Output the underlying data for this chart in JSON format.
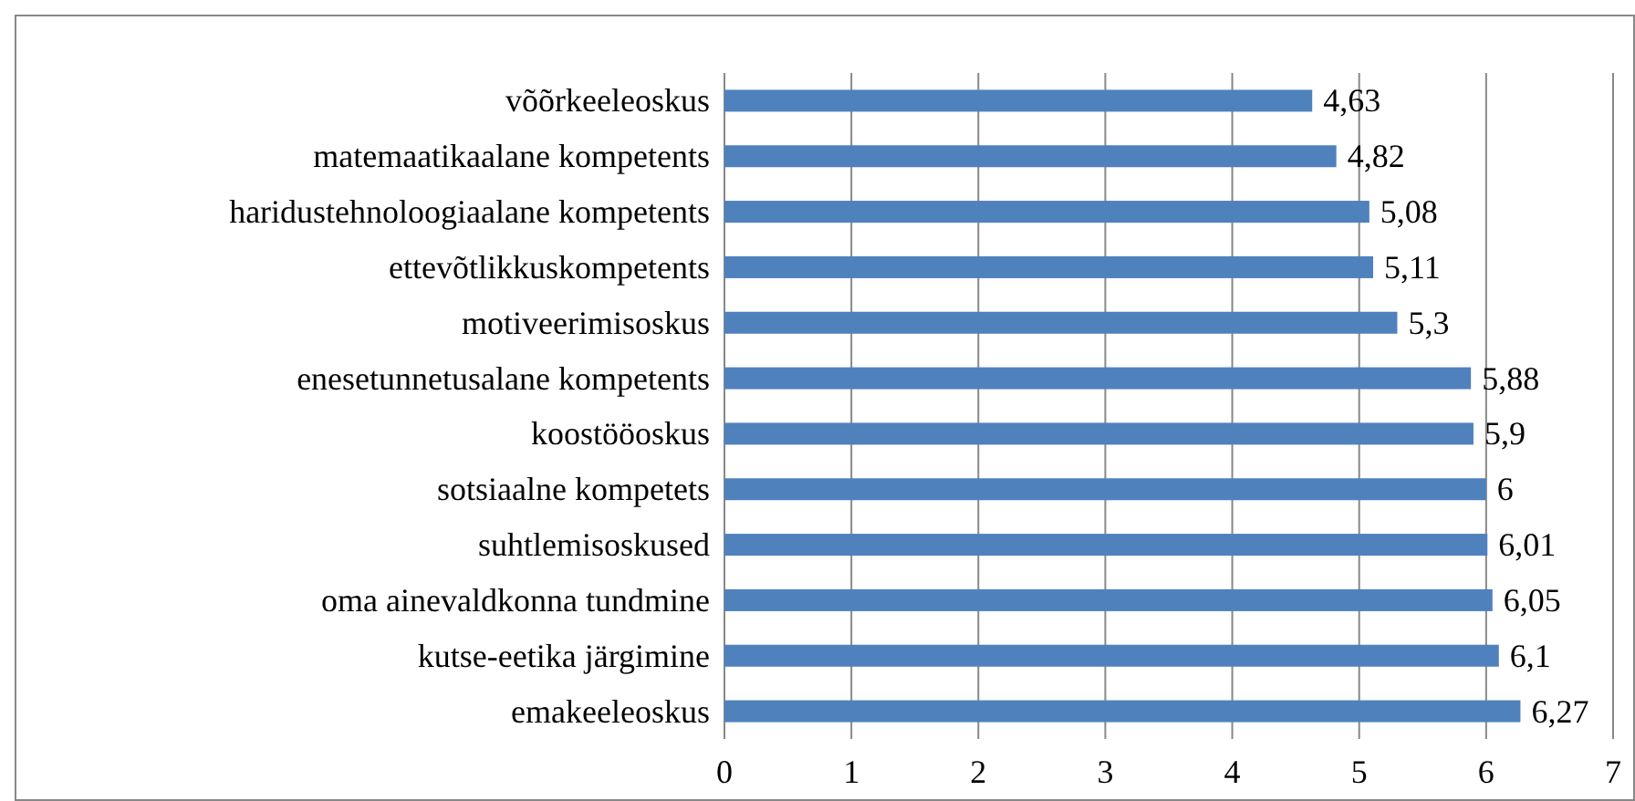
{
  "chart_data": {
    "type": "bar",
    "orientation": "horizontal",
    "categories": [
      "võõrkeeleoskus",
      "matemaatikaalane kompetents",
      "haridustehnoloogiaalane kompetents",
      "ettevõtlikkuskompetents",
      "motiveerimisoskus",
      "enesetunnetusalane kompetents",
      "koostööoskus",
      "sotsiaalne kompetets",
      "suhtlemisoskused",
      "oma ainevaldkonna tundmine",
      "kutse-eetika järgimine",
      "emakeeleoskus"
    ],
    "values": [
      4.63,
      4.82,
      5.08,
      5.11,
      5.3,
      5.88,
      5.9,
      6,
      6.01,
      6.05,
      6.1,
      6.27
    ],
    "value_labels": [
      "4,63",
      "4,82",
      "5,08",
      "5,11",
      "5,3",
      "5,88",
      "5,9",
      "6",
      "6,01",
      "6,05",
      "6,1",
      "6,27"
    ],
    "color": "#4f81bd",
    "xlim": [
      0,
      7
    ],
    "xticks": [
      0,
      1,
      2,
      3,
      4,
      5,
      6,
      7
    ],
    "grid": "x"
  }
}
